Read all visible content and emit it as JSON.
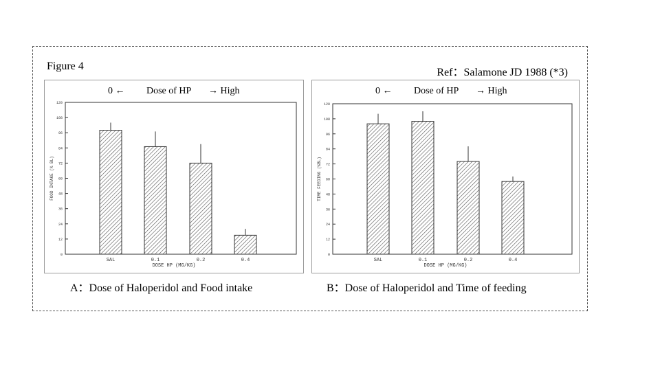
{
  "figure_label": "Figure 4",
  "ref_label": "Ref：Salamone JD 1988 (*3)",
  "dose_header": {
    "low": "0 ←",
    "title": "Dose of HP",
    "high": "→  High"
  },
  "captions": {
    "a": "A：Dose of Haloperidol and Food intake",
    "b": "B：Dose of Haloperidol and Time of feeding"
  },
  "colors": {
    "bar_stroke": "#333333",
    "hatch": "#555555",
    "axis": "#333333"
  },
  "chart_data": [
    {
      "type": "bar",
      "title": "",
      "xlabel": "DOSE HP (MG/KG)",
      "ylabel": "FOOD INTAKE (% BL)",
      "categories": [
        "SAL",
        "0.1",
        "0.2",
        "0.4"
      ],
      "values": [
        98,
        85,
        72,
        15
      ],
      "errors": [
        6,
        12,
        15,
        5
      ],
      "ylim": [
        0,
        120
      ],
      "yticks": [
        0,
        12,
        24,
        36,
        48,
        60,
        72,
        84,
        96,
        108,
        120
      ]
    },
    {
      "type": "bar",
      "title": "",
      "xlabel": "DOSE HP (MG/KG)",
      "ylabel": "TIME FEEDING (%BL)",
      "categories": [
        "SAL",
        "0.1",
        "0.2",
        "0.4"
      ],
      "values": [
        104,
        106,
        74,
        58
      ],
      "errors": [
        8,
        8,
        12,
        4
      ],
      "ylim": [
        0,
        120
      ],
      "yticks": [
        0,
        12,
        24,
        36,
        48,
        60,
        72,
        84,
        96,
        108,
        120
      ]
    }
  ]
}
